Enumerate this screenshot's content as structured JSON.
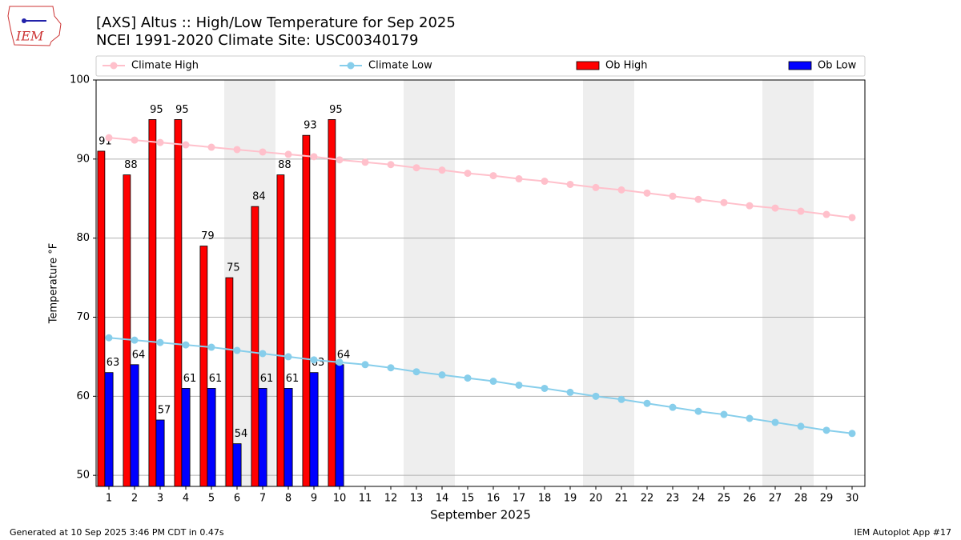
{
  "chart_data": {
    "type": "bar_line",
    "title": "[AXS] Altus :: High/Low Temperature for Sep 2025",
    "subtitle": "NCEI 1991-2020 Climate Site: USC00340179",
    "xlabel": "September 2025",
    "ylabel": "Temperature °F",
    "footer_left": "Generated at 10 Sep 2025 3:46 PM CDT in 0.47s",
    "footer_right": "IEM Autoplot App #17",
    "logo_text": "IEM",
    "x": [
      1,
      2,
      3,
      4,
      5,
      6,
      7,
      8,
      9,
      10,
      11,
      12,
      13,
      14,
      15,
      16,
      17,
      18,
      19,
      20,
      21,
      22,
      23,
      24,
      25,
      26,
      27,
      28,
      29,
      30
    ],
    "xlim": [
      0.5,
      30.5
    ],
    "xticks": [
      1,
      2,
      3,
      4,
      5,
      6,
      7,
      8,
      9,
      10,
      11,
      12,
      13,
      14,
      15,
      16,
      17,
      18,
      19,
      20,
      21,
      22,
      23,
      24,
      25,
      26,
      27,
      28,
      29,
      30
    ],
    "ylim": [
      48.6,
      100
    ],
    "yticks": [
      50,
      60,
      70,
      80,
      90,
      100
    ],
    "grid": true,
    "shaded_days": [
      6,
      7,
      13,
      14,
      20,
      21,
      27,
      28
    ],
    "series": [
      {
        "name": "Climate High",
        "kind": "line",
        "color": "#ffc0cb",
        "values": [
          92.7,
          92.4,
          92.1,
          91.8,
          91.5,
          91.2,
          90.9,
          90.6,
          90.3,
          89.9,
          89.6,
          89.3,
          88.9,
          88.6,
          88.2,
          87.9,
          87.5,
          87.2,
          86.8,
          86.4,
          86.1,
          85.7,
          85.3,
          84.9,
          84.5,
          84.1,
          83.8,
          83.4,
          83.0,
          82.6
        ]
      },
      {
        "name": "Climate Low",
        "kind": "line",
        "color": "#87ceeb",
        "values": [
          67.4,
          67.1,
          66.8,
          66.5,
          66.2,
          65.8,
          65.4,
          65.0,
          64.6,
          64.3,
          64.0,
          63.6,
          63.1,
          62.7,
          62.3,
          61.9,
          61.4,
          61.0,
          60.5,
          60.0,
          59.6,
          59.1,
          58.6,
          58.1,
          57.7,
          57.2,
          56.7,
          56.2,
          55.7,
          55.3
        ]
      },
      {
        "name": "Ob High",
        "kind": "bar",
        "color": "#ff0000",
        "values": [
          91,
          88,
          95,
          95,
          79,
          75,
          84,
          88,
          93,
          95,
          null,
          null,
          null,
          null,
          null,
          null,
          null,
          null,
          null,
          null,
          null,
          null,
          null,
          null,
          null,
          null,
          null,
          null,
          null,
          null
        ]
      },
      {
        "name": "Ob Low",
        "kind": "bar",
        "color": "#0000ff",
        "values": [
          63,
          64,
          57,
          61,
          61,
          54,
          61,
          61,
          63,
          64,
          null,
          null,
          null,
          null,
          null,
          null,
          null,
          null,
          null,
          null,
          null,
          null,
          null,
          null,
          null,
          null,
          null,
          null,
          null,
          null
        ]
      }
    ]
  }
}
